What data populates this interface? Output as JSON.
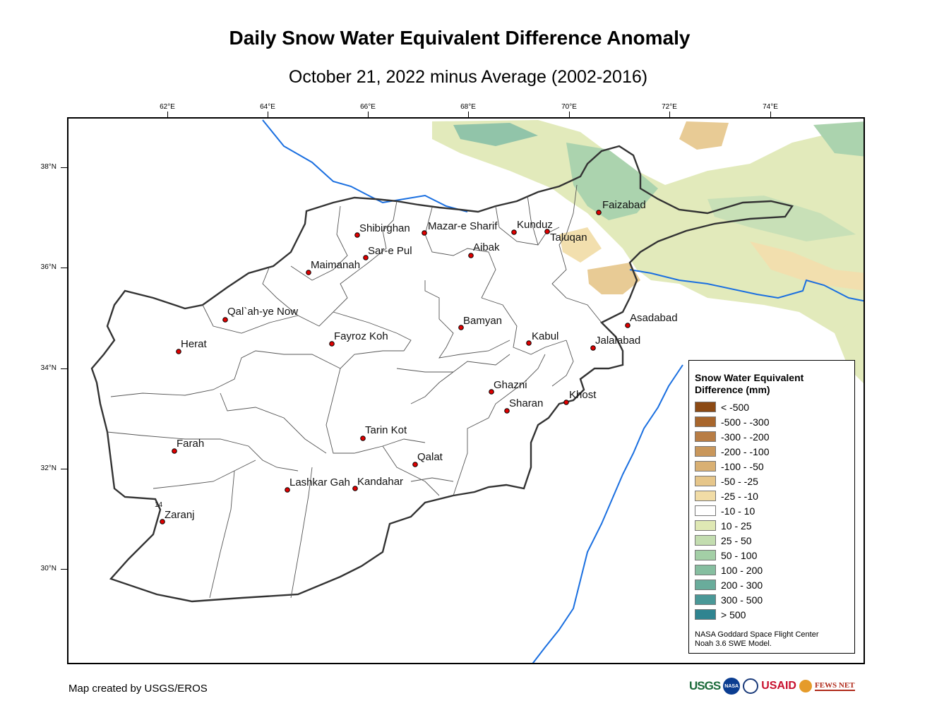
{
  "title": "Daily Snow Water Equivalent Difference Anomaly",
  "subtitle": "October 21, 2022 minus Average (2002-2016)",
  "ticks": {
    "longitude": [
      "62°E",
      "64°E",
      "66°E",
      "68°E",
      "70°E",
      "72°E",
      "74°E"
    ],
    "latitude": [
      "38°N",
      "36°N",
      "34°N",
      "32°N",
      "30°N"
    ]
  },
  "cities": [
    {
      "name": "Faizabad"
    },
    {
      "name": "Shibirghan"
    },
    {
      "name": "Mazar-e Sharif"
    },
    {
      "name": "Kunduz"
    },
    {
      "name": "Taluqan"
    },
    {
      "name": "Sar-e Pul"
    },
    {
      "name": "Aibak"
    },
    {
      "name": "Maimanah"
    },
    {
      "name": "Qal`ah-ye Now"
    },
    {
      "name": "Bamyan"
    },
    {
      "name": "Asadabad"
    },
    {
      "name": "Herat"
    },
    {
      "name": "Fayroz Koh"
    },
    {
      "name": "Kabul"
    },
    {
      "name": "Jalalabad"
    },
    {
      "name": "Ghazni"
    },
    {
      "name": "Khost"
    },
    {
      "name": "Sharan"
    },
    {
      "name": "Tarin Kot"
    },
    {
      "name": "Farah"
    },
    {
      "name": "Qalat"
    },
    {
      "name": "Lashkar Gah"
    },
    {
      "name": "Kandahar"
    },
    {
      "name": "Zaranj"
    }
  ],
  "stray_label": "14",
  "legend": {
    "title": "Snow Water Equivalent Difference (mm)",
    "items": [
      {
        "label": "< -500",
        "color": "#8c4a14"
      },
      {
        "label": "-500 - -300",
        "color": "#a8662c"
      },
      {
        "label": "-300 - -200",
        "color": "#b87d45"
      },
      {
        "label": "-200 - -100",
        "color": "#c9975b"
      },
      {
        "label": "-100 - -50",
        "color": "#d9b073"
      },
      {
        "label": "-50 - -25",
        "color": "#e6c68a"
      },
      {
        "label": "-25 - -10",
        "color": "#f1dca6"
      },
      {
        "label": "-10 - 10",
        "color": "#ffffff"
      },
      {
        "label": "10 - 25",
        "color": "#dfe8b4"
      },
      {
        "label": "25 - 50",
        "color": "#c3ddb0"
      },
      {
        "label": "50 - 100",
        "color": "#a3cfa6"
      },
      {
        "label": "100 - 200",
        "color": "#86bea0"
      },
      {
        "label": "200 - 300",
        "color": "#69ac9b"
      },
      {
        "label": "300 - 500",
        "color": "#4a9897"
      },
      {
        "label": "> 500",
        "color": "#2f8490"
      }
    ],
    "credit_line1": "NASA Goddard Space Flight Center",
    "credit_line2": "Noah 3.6 SWE Model."
  },
  "credit": "Map created by USGS/EROS",
  "logos": {
    "usgs": "USGS",
    "nasa": "NASA",
    "usaid": "USAID",
    "fews": "FEWS NET"
  }
}
